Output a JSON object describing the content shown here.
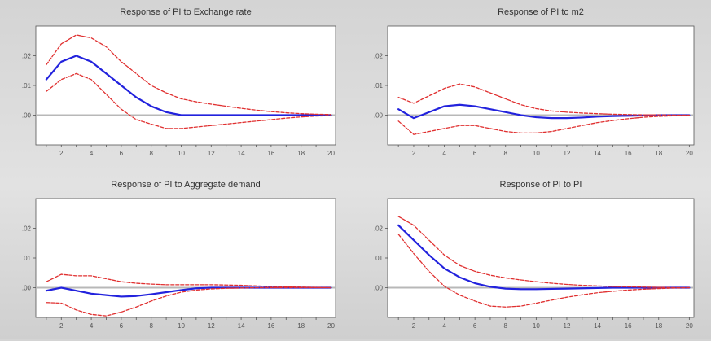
{
  "chart_data": [
    {
      "type": "line",
      "title": "Response of PI to Exchange rate",
      "x": [
        1,
        2,
        3,
        4,
        5,
        6,
        7,
        8,
        9,
        10,
        11,
        12,
        13,
        14,
        15,
        16,
        17,
        18,
        19,
        20
      ],
      "xticks": [
        2,
        4,
        6,
        8,
        10,
        12,
        14,
        16,
        18,
        20
      ],
      "yticks": [
        ".00",
        ".01",
        ".02"
      ],
      "ylim": [
        -0.01,
        0.03
      ],
      "series": [
        {
          "role": "response",
          "color": "#2222dd",
          "style": "solid",
          "values": [
            0.012,
            0.018,
            0.02,
            0.018,
            0.014,
            0.01,
            0.006,
            0.003,
            0.001,
            0.0,
            0.0,
            0.0,
            0.0,
            0.0,
            0.0,
            0.0,
            0.0,
            0.0,
            0.0,
            0.0
          ]
        },
        {
          "role": "upper band",
          "color": "#e03030",
          "style": "dashed",
          "values": [
            0.017,
            0.024,
            0.027,
            0.026,
            0.023,
            0.018,
            0.014,
            0.01,
            0.0075,
            0.0055,
            0.0045,
            0.0037,
            0.003,
            0.0023,
            0.0017,
            0.0012,
            0.0008,
            0.0005,
            0.0003,
            0.0002
          ]
        },
        {
          "role": "lower band",
          "color": "#e03030",
          "style": "dashed",
          "values": [
            0.008,
            0.012,
            0.014,
            0.012,
            0.007,
            0.002,
            -0.0015,
            -0.003,
            -0.0045,
            -0.0045,
            -0.004,
            -0.0035,
            -0.003,
            -0.0025,
            -0.002,
            -0.0015,
            -0.001,
            -0.0006,
            -0.0003,
            -0.0002
          ]
        }
      ]
    },
    {
      "type": "line",
      "title": "Response of PI to m2",
      "x": [
        1,
        2,
        3,
        4,
        5,
        6,
        7,
        8,
        9,
        10,
        11,
        12,
        13,
        14,
        15,
        16,
        17,
        18,
        19,
        20
      ],
      "xticks": [
        2,
        4,
        6,
        8,
        10,
        12,
        14,
        16,
        18,
        20
      ],
      "yticks": [
        ".00",
        ".01",
        ".02"
      ],
      "ylim": [
        -0.01,
        0.03
      ],
      "series": [
        {
          "role": "response",
          "color": "#2222dd",
          "style": "solid",
          "values": [
            0.002,
            -0.001,
            0.001,
            0.003,
            0.0035,
            0.003,
            0.002,
            0.001,
            0.0,
            -0.0007,
            -0.001,
            -0.001,
            -0.0008,
            -0.0005,
            -0.0003,
            -0.0002,
            -0.0001,
            0.0,
            0.0,
            0.0
          ]
        },
        {
          "role": "upper band",
          "color": "#e03030",
          "style": "dashed",
          "values": [
            0.006,
            0.004,
            0.0065,
            0.009,
            0.0105,
            0.0095,
            0.0075,
            0.0055,
            0.0035,
            0.0022,
            0.0014,
            0.001,
            0.0007,
            0.0005,
            0.0003,
            0.0002,
            0.0001,
            0.0001,
            0.0,
            0.0
          ]
        },
        {
          "role": "lower band",
          "color": "#e03030",
          "style": "dashed",
          "values": [
            -0.002,
            -0.0065,
            -0.0055,
            -0.0045,
            -0.0035,
            -0.0035,
            -0.0045,
            -0.0055,
            -0.006,
            -0.006,
            -0.0055,
            -0.0045,
            -0.0035,
            -0.0025,
            -0.0018,
            -0.0012,
            -0.0007,
            -0.0004,
            -0.0002,
            -0.0001
          ]
        }
      ]
    },
    {
      "type": "line",
      "title": "Response of PI to Aggregate demand",
      "x": [
        1,
        2,
        3,
        4,
        5,
        6,
        7,
        8,
        9,
        10,
        11,
        12,
        13,
        14,
        15,
        16,
        17,
        18,
        19,
        20
      ],
      "xticks": [
        2,
        4,
        6,
        8,
        10,
        12,
        14,
        16,
        18,
        20
      ],
      "yticks": [
        ".00",
        ".01",
        ".02"
      ],
      "ylim": [
        -0.01,
        0.03
      ],
      "series": [
        {
          "role": "response",
          "color": "#2222dd",
          "style": "solid",
          "values": [
            -0.001,
            0.0,
            -0.001,
            -0.002,
            -0.0025,
            -0.003,
            -0.0028,
            -0.0022,
            -0.0015,
            -0.0008,
            -0.0002,
            0.0,
            0.0,
            0.0,
            0.0,
            0.0,
            0.0,
            0.0,
            0.0,
            0.0
          ]
        },
        {
          "role": "upper band",
          "color": "#e03030",
          "style": "dashed",
          "values": [
            0.002,
            0.0045,
            0.004,
            0.004,
            0.003,
            0.002,
            0.0015,
            0.0012,
            0.001,
            0.001,
            0.001,
            0.001,
            0.0009,
            0.0008,
            0.0006,
            0.0004,
            0.0003,
            0.0002,
            0.0001,
            0.0
          ]
        },
        {
          "role": "lower band",
          "color": "#e03030",
          "style": "dashed",
          "values": [
            -0.005,
            -0.0052,
            -0.0075,
            -0.009,
            -0.0095,
            -0.0082,
            -0.0065,
            -0.0045,
            -0.0028,
            -0.0015,
            -0.0008,
            -0.0004,
            -0.0002,
            -0.0001,
            0.0,
            0.0,
            0.0,
            0.0,
            0.0,
            0.0
          ]
        }
      ]
    },
    {
      "type": "line",
      "title": "Response of PI to PI",
      "x": [
        1,
        2,
        3,
        4,
        5,
        6,
        7,
        8,
        9,
        10,
        11,
        12,
        13,
        14,
        15,
        16,
        17,
        18,
        19,
        20
      ],
      "xticks": [
        2,
        4,
        6,
        8,
        10,
        12,
        14,
        16,
        18,
        20
      ],
      "yticks": [
        ".00",
        ".01",
        ".02"
      ],
      "ylim": [
        -0.01,
        0.03
      ],
      "series": [
        {
          "role": "response",
          "color": "#2222dd",
          "style": "solid",
          "values": [
            0.021,
            0.016,
            0.011,
            0.0065,
            0.0035,
            0.0015,
            0.0003,
            -0.0003,
            -0.0005,
            -0.0005,
            -0.0004,
            -0.0003,
            -0.0002,
            -0.0001,
            0.0,
            0.0,
            0.0,
            0.0,
            0.0,
            0.0
          ]
        },
        {
          "role": "upper band",
          "color": "#e03030",
          "style": "dashed",
          "values": [
            0.024,
            0.021,
            0.016,
            0.011,
            0.0075,
            0.0055,
            0.0042,
            0.0033,
            0.0026,
            0.002,
            0.0015,
            0.0011,
            0.0008,
            0.0006,
            0.0004,
            0.0003,
            0.0002,
            0.0001,
            0.0,
            0.0
          ]
        },
        {
          "role": "lower band",
          "color": "#e03030",
          "style": "dashed",
          "values": [
            0.018,
            0.0115,
            0.0055,
            0.0005,
            -0.0025,
            -0.0045,
            -0.0062,
            -0.0065,
            -0.0062,
            -0.0052,
            -0.0042,
            -0.0032,
            -0.0024,
            -0.0017,
            -0.0012,
            -0.0008,
            -0.0005,
            -0.0003,
            -0.0001,
            0.0
          ]
        }
      ]
    }
  ]
}
